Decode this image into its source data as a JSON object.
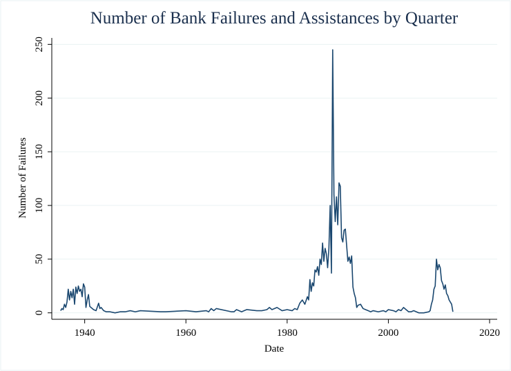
{
  "chart_data": {
    "type": "line",
    "title": "Number of Bank Failures and Assistances by Quarter",
    "x_label": "Date",
    "y_label": "Number of Failures",
    "color": "#1a476f",
    "grid": true,
    "xlim": [
      1933.5,
      2021.5
    ],
    "ylim": [
      -6,
      256
    ],
    "xticks": [
      1940,
      1960,
      1980,
      2000,
      2020
    ],
    "yticks": [
      0,
      50,
      100,
      150,
      200,
      250
    ],
    "x": [
      1935.25,
      1935.5,
      1935.75,
      1936,
      1936.25,
      1936.5,
      1936.75,
      1937,
      1937.25,
      1937.5,
      1937.75,
      1938,
      1938.25,
      1938.5,
      1938.75,
      1939,
      1939.25,
      1939.5,
      1939.75,
      1940,
      1940.25,
      1940.5,
      1940.75,
      1941,
      1941.25,
      1941.75,
      1942.25,
      1942.75,
      1943,
      1943.25,
      1943.75,
      1944.25,
      1945,
      1946,
      1947,
      1948,
      1949,
      1950,
      1951,
      1955,
      1956,
      1960,
      1962,
      1964,
      1964.5,
      1965,
      1965.5,
      1966,
      1969,
      1969.5,
      1970,
      1971,
      1972,
      1974,
      1975,
      1976,
      1976.5,
      1977,
      1978,
      1979,
      1980,
      1981,
      1981.5,
      1982,
      1982.5,
      1983,
      1983.5,
      1984,
      1984.25,
      1984.5,
      1984.75,
      1985,
      1985.25,
      1985.5,
      1985.75,
      1986,
      1986.25,
      1986.5,
      1986.75,
      1987,
      1987.25,
      1987.5,
      1987.75,
      1988,
      1988.25,
      1988.5,
      1988.75,
      1989,
      1989.25,
      1989.5,
      1989.75,
      1990,
      1990.25,
      1990.5,
      1990.75,
      1991,
      1991.25,
      1991.5,
      1991.75,
      1992,
      1992.25,
      1992.5,
      1992.75,
      1993,
      1993.25,
      1993.5,
      1993.75,
      1994,
      1994.5,
      1995,
      1995.5,
      1996,
      1996.5,
      1997,
      1998,
      1999,
      1999.5,
      2000,
      2001,
      2001.5,
      2002,
      2002.5,
      2003,
      2004,
      2004.5,
      2005,
      2006,
      2007,
      2008,
      2008.25,
      2008.5,
      2008.75,
      2009,
      2009.25,
      2009.5,
      2009.75,
      2010,
      2010.25,
      2010.5,
      2010.75,
      2011,
      2011.25,
      2011.5,
      2011.75,
      2012,
      2012.5,
      2012.75
    ],
    "values": [
      2,
      4,
      3,
      8,
      5,
      10,
      22,
      12,
      20,
      14,
      22,
      8,
      24,
      18,
      25,
      20,
      22,
      15,
      27,
      24,
      5,
      12,
      17,
      6,
      5,
      3,
      2,
      9,
      4,
      5,
      2,
      1,
      1,
      0,
      1,
      1,
      2,
      1,
      2,
      1,
      1,
      2,
      1,
      2,
      1,
      4,
      2,
      4,
      1,
      1,
      3,
      1,
      3,
      2,
      2,
      3,
      5,
      3,
      5,
      2,
      3,
      2,
      4,
      3,
      9,
      12,
      8,
      15,
      12,
      31,
      20,
      28,
      25,
      40,
      38,
      43,
      35,
      50,
      45,
      65,
      48,
      60,
      55,
      42,
      60,
      100,
      37,
      245,
      110,
      85,
      108,
      82,
      121,
      118,
      70,
      66,
      77,
      78,
      63,
      48,
      52,
      46,
      53,
      24,
      18,
      14,
      5,
      7,
      8,
      4,
      3,
      2,
      1,
      2,
      1,
      2,
      1,
      3,
      2,
      1,
      3,
      2,
      5,
      1,
      1,
      2,
      0,
      0,
      1,
      2,
      8,
      12,
      22,
      25,
      50,
      40,
      45,
      42,
      30,
      27,
      22,
      26,
      18,
      16,
      12,
      8,
      1
    ]
  }
}
